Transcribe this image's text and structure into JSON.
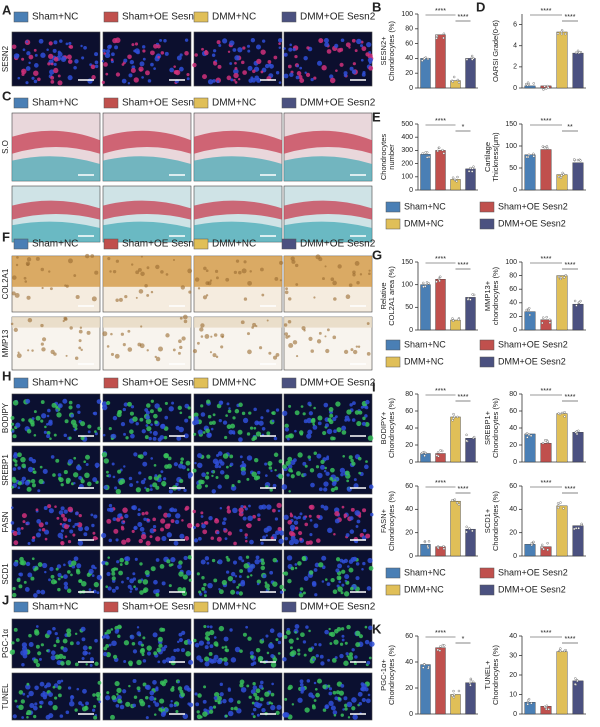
{
  "groups": [
    {
      "name": "Sham+NC",
      "color": "#4a7fb5"
    },
    {
      "name": "Sham+OE Sesn2",
      "color": "#c0504d"
    },
    {
      "name": "DMM+NC",
      "color": "#e0bf58"
    },
    {
      "name": "DMM+OE Sesn2",
      "color": "#4b5180"
    }
  ],
  "image_panels": [
    {
      "letter": "A",
      "rows": [
        "SESN2"
      ]
    },
    {
      "letter": "C",
      "rows": [
        "S.O",
        null
      ]
    },
    {
      "letter": "F",
      "rows": [
        "COL2A1",
        "MMP13"
      ]
    },
    {
      "letter": "H",
      "rows": [
        "BODIPY",
        "SREBP1",
        "FASN",
        "SCD1"
      ]
    },
    {
      "letter": "J",
      "rows": [
        "PGC-1α",
        "TUNEL"
      ]
    }
  ],
  "chart_data": [
    {
      "type": "bar",
      "label": "B",
      "ylabel": [
        "SESN2+",
        "Chondrocytes (%)"
      ],
      "categories": [
        null,
        null,
        null,
        null
      ],
      "values": [
        40,
        72,
        10,
        40
      ],
      "colors": [
        "#4a7fb5",
        "#c0504d",
        "#e0bf58",
        "#4b5180"
      ],
      "ylim": [
        0,
        100
      ],
      "yticks": [
        0,
        20,
        40,
        60,
        80,
        100
      ],
      "annotations": [
        "****",
        "****"
      ]
    },
    {
      "type": "bar",
      "label": "D",
      "ylabel": [
        "OARSI Grade(0-6)"
      ],
      "categories": [
        null,
        null,
        null,
        null
      ],
      "values": [
        0.2,
        0.2,
        5.3,
        3.3
      ],
      "colors": [
        "#4a7fb5",
        "#c0504d",
        "#e0bf58",
        "#4b5180"
      ],
      "ylim": [
        0,
        7
      ],
      "yticks": [
        0,
        2,
        4,
        6
      ],
      "annotations": [
        "****",
        "****"
      ]
    },
    {
      "type": "bar",
      "label": "E",
      "ylabel": [
        "Chondrocytes",
        "number"
      ],
      "categories": [
        null,
        null,
        null,
        null
      ],
      "values": [
        270,
        300,
        80,
        160
      ],
      "colors": [
        "#4a7fb5",
        "#c0504d",
        "#e0bf58",
        "#4b5180"
      ],
      "ylim": [
        0,
        500
      ],
      "yticks": [
        0,
        100,
        200,
        300,
        400,
        500
      ],
      "annotations": [
        "****",
        "*"
      ]
    },
    {
      "type": "bar",
      "ylabel": [
        "Cartilage",
        "Thickness(μm)"
      ],
      "categories": [
        null,
        null,
        null,
        null
      ],
      "values": [
        80,
        92,
        35,
        62
      ],
      "colors": [
        "#4a7fb5",
        "#c0504d",
        "#e0bf58",
        "#4b5180"
      ],
      "ylim": [
        0,
        150
      ],
      "yticks": [
        0,
        50,
        100,
        150
      ],
      "annotations": [
        "****",
        "**"
      ]
    },
    {
      "type": "bar",
      "label": "G",
      "ylabel": [
        "Relative",
        "COL2A1 area (%)"
      ],
      "categories": [
        null,
        null,
        null,
        null
      ],
      "values": [
        100,
        112,
        22,
        72
      ],
      "colors": [
        "#4a7fb5",
        "#c0504d",
        "#e0bf58",
        "#4b5180"
      ],
      "ylim": [
        0,
        150
      ],
      "yticks": [
        0,
        50,
        100,
        150
      ],
      "annotations": [
        "****",
        "****"
      ]
    },
    {
      "type": "bar",
      "ylabel": [
        "MMP13+",
        "chondrocytes (%)"
      ],
      "categories": [
        null,
        null,
        null,
        null
      ],
      "values": [
        27,
        15,
        80,
        38
      ],
      "colors": [
        "#4a7fb5",
        "#c0504d",
        "#e0bf58",
        "#4b5180"
      ],
      "ylim": [
        0,
        100
      ],
      "yticks": [
        0,
        20,
        40,
        60,
        80,
        100
      ],
      "annotations": [
        "****",
        "****"
      ]
    },
    {
      "type": "bar",
      "label": "I",
      "ylabel": [
        "BODIPY+",
        "Chondrocytes (%)"
      ],
      "categories": [
        null,
        null,
        null,
        null
      ],
      "values": [
        10,
        10,
        53,
        28
      ],
      "colors": [
        "#4a7fb5",
        "#c0504d",
        "#e0bf58",
        "#4b5180"
      ],
      "ylim": [
        0,
        80
      ],
      "yticks": [
        0,
        20,
        40,
        60,
        80
      ],
      "annotations": [
        "****",
        "****"
      ]
    },
    {
      "type": "bar",
      "ylabel": [
        "SREBP1+",
        "Chondrocytes (%)"
      ],
      "categories": [
        null,
        null,
        null,
        null
      ],
      "values": [
        33,
        22,
        57,
        35
      ],
      "colors": [
        "#4a7fb5",
        "#c0504d",
        "#e0bf58",
        "#4b5180"
      ],
      "ylim": [
        0,
        80
      ],
      "yticks": [
        0,
        20,
        40,
        60,
        80
      ],
      "annotations": [
        "****",
        "****"
      ]
    },
    {
      "type": "bar",
      "ylabel": [
        "FASN+",
        "Chondrocytes (%)"
      ],
      "categories": [
        null,
        null,
        null,
        null
      ],
      "values": [
        10,
        8,
        47,
        23
      ],
      "colors": [
        "#4a7fb5",
        "#c0504d",
        "#e0bf58",
        "#4b5180"
      ],
      "ylim": [
        0,
        60
      ],
      "yticks": [
        0,
        20,
        40,
        60
      ],
      "annotations": [
        "****",
        "****"
      ]
    },
    {
      "type": "bar",
      "ylabel": [
        "SCD1+",
        "Chondrocytes (%)"
      ],
      "categories": [
        null,
        null,
        null,
        null
      ],
      "values": [
        10,
        8,
        43,
        26
      ],
      "colors": [
        "#4a7fb5",
        "#c0504d",
        "#e0bf58",
        "#4b5180"
      ],
      "ylim": [
        0,
        60
      ],
      "yticks": [
        0,
        20,
        40,
        60
      ],
      "annotations": [
        "****",
        "****"
      ]
    },
    {
      "type": "bar",
      "label": "K",
      "ylabel": [
        "PGC-1α+",
        "Chondrocytes (%)"
      ],
      "categories": [
        null,
        null,
        null,
        null
      ],
      "values": [
        38,
        51,
        15,
        24
      ],
      "colors": [
        "#4a7fb5",
        "#c0504d",
        "#e0bf58",
        "#4b5180"
      ],
      "ylim": [
        0,
        60
      ],
      "yticks": [
        0,
        20,
        40,
        60
      ],
      "annotations": [
        "****",
        "*"
      ]
    },
    {
      "type": "bar",
      "ylabel": [
        "TUNEL+",
        "Chondrocytes (%)"
      ],
      "categories": [
        null,
        null,
        null,
        null
      ],
      "values": [
        6,
        4,
        32,
        17
      ],
      "colors": [
        "#4a7fb5",
        "#c0504d",
        "#e0bf58",
        "#4b5180"
      ],
      "ylim": [
        0,
        40
      ],
      "yticks": [
        0,
        10,
        20,
        30,
        40
      ],
      "annotations": [
        "****",
        "****"
      ]
    }
  ]
}
